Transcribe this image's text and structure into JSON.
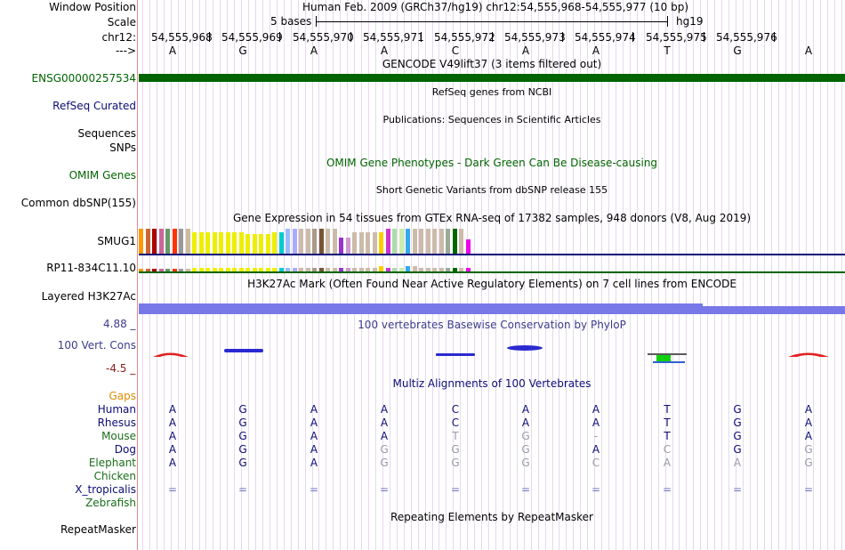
{
  "header": {
    "window_position_label": "Window Position",
    "scale_label": "Scale",
    "chrom_label": "chr12:",
    "arrow_label": "--->",
    "position_text": "Human Feb. 2009 (GRCh37/hg19)   chr12:54,555,968-54,555,977 (10 bp)",
    "scale_text": "5 bases",
    "assembly": "hg19",
    "coordinates": [
      "54,555,968",
      "54,555,969",
      "54,555,970",
      "54,555,971",
      "54,555,972",
      "54,555,973",
      "54,555,974",
      "54,555,975",
      "54,555,976"
    ],
    "bases": [
      "A",
      "G",
      "A",
      "A",
      "C",
      "A",
      "A",
      "T",
      "G",
      "A"
    ]
  },
  "tracks": {
    "gencode": {
      "title": "GENCODE V49lift37 (3 items filtered out)",
      "label": "ENSG00000257534",
      "color": "#006400"
    },
    "refseq": {
      "title": "RefSeq genes from NCBI",
      "label": "RefSeq Curated",
      "color": "#0c0c78"
    },
    "publications": {
      "title": "Publications: Sequences in Scientific Articles",
      "label1": "Sequences",
      "label2": "SNPs"
    },
    "omim": {
      "title": "OMIM Gene Phenotypes - Dark Green Can Be Disease-causing",
      "label": "OMIM Genes",
      "color": "#006400"
    },
    "dbsnp": {
      "title": "Short Genetic Variants from dbSNP release 155",
      "label": "Common dbSNP(155)"
    },
    "gtex": {
      "title": "Gene Expression in 54 tissues from GTEx RNA-seq of 17382 samples, 948 donors (V8, Aug 2019)",
      "label1": "SMUG1",
      "label2": "RP11-834C11.10"
    },
    "h3k27ac": {
      "title": "H3K27Ac Mark (Often Found Near Active Regulatory Elements) on 7 cell lines from ENCODE",
      "label": "Layered H3K27Ac",
      "color": "#7878e8"
    },
    "phylop": {
      "title": "100 vertebrates Basewise Conservation by PhyloP",
      "label": "100 Vert. Cons",
      "max": "4.88 _",
      "min": "-4.5 _",
      "color": "#3c3c8c"
    },
    "multiz": {
      "title": "Multiz Alignments of 100 Vertebrates",
      "gaps_label": "Gaps",
      "species": [
        {
          "name": "Human",
          "bases": [
            "A",
            "G",
            "A",
            "A",
            "C",
            "A",
            "A",
            "T",
            "G",
            "A"
          ]
        },
        {
          "name": "Rhesus",
          "bases": [
            "A",
            "G",
            "A",
            "A",
            "C",
            "A",
            "A",
            "T",
            "G",
            "A"
          ]
        },
        {
          "name": "Mouse",
          "bases": [
            "A",
            "G",
            "A",
            "A",
            "T",
            "G",
            "-",
            "T",
            "G",
            "A"
          ]
        },
        {
          "name": "Dog",
          "bases": [
            "A",
            "G",
            "A",
            "G",
            "G",
            "G",
            "A",
            "C",
            "G",
            "G"
          ]
        },
        {
          "name": "Elephant",
          "bases": [
            "A",
            "G",
            "A",
            "G",
            "G",
            "G",
            "C",
            "A",
            "A",
            "G"
          ]
        },
        {
          "name": "Chicken",
          "bases": [
            "",
            "",
            "",
            "",
            "",
            "",
            "",
            "",
            "",
            ""
          ]
        },
        {
          "name": "X_tropicalis",
          "bases": [
            "=",
            "=",
            "=",
            "=",
            "=",
            "=",
            "=",
            "=",
            "=",
            "="
          ]
        },
        {
          "name": "Zebrafish",
          "bases": [
            "",
            "",
            "",
            "",
            "",
            "",
            "",
            "",
            "",
            ""
          ]
        }
      ]
    },
    "repeatmasker": {
      "title": "Repeating Elements by RepeatMasker",
      "label": "RepeatMasker"
    }
  }
}
